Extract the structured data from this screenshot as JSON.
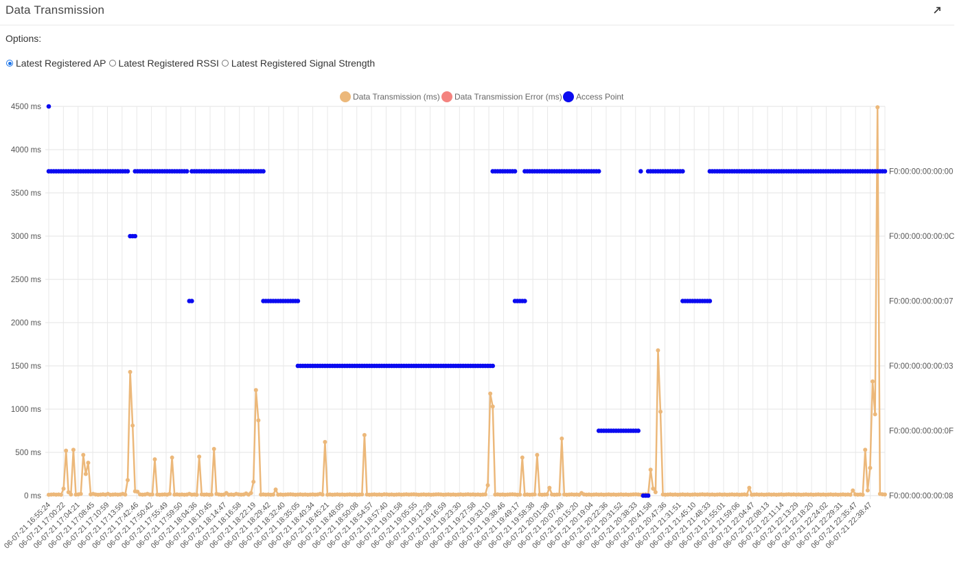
{
  "panel": {
    "title": "Data Transmission"
  },
  "options": {
    "label": "Options:",
    "radios": [
      {
        "label": "Latest Registered AP",
        "checked": true
      },
      {
        "label": "Latest Registered RSSI",
        "checked": false
      },
      {
        "label": "Latest Registered Signal Strength",
        "checked": false
      }
    ]
  },
  "colors": {
    "transmission": "#ecb87a",
    "error": "#f4837f",
    "access_point": "#0b0bf0",
    "radio_accent": "#1a73e8"
  },
  "chart_data": {
    "type": "line",
    "legend": {
      "placement": "top-center",
      "entries": [
        "Data Transmission (ms)",
        "Data Transmission Error (ms)",
        "Access Point"
      ]
    },
    "y_axis": {
      "ticks": [
        "0 ms",
        "500 ms",
        "1000 ms",
        "1500 ms",
        "2000 ms",
        "2500 ms",
        "3000 ms",
        "3500 ms",
        "4000 ms",
        "4500 ms"
      ],
      "ylim": [
        0,
        4500
      ]
    },
    "y2_axis": {
      "ticks": [
        "F0:00:00:00:00:08",
        "F0:00:00:00:00:0F",
        "F0:00:00:00:00:03",
        "F0:00:00:00:00:07",
        "F0:00:00:00:00:0C",
        "F0:00:00:00:00:00"
      ],
      "levels": [
        0,
        750,
        1500,
        2250,
        3000,
        3750
      ]
    },
    "x_axis": {
      "tick_labels": [
        "06-07-21 16:55:24",
        "06-07-21 17:00:22",
        "06-07-21 17:04:21",
        "06-07-21 17:08:45",
        "06-07-21 17:10:59",
        "06-07-21 17:13:59",
        "06-07-21 17:42:46",
        "06-07-21 17:50:42",
        "06-07-21 17:55:49",
        "06-07-21 17:59:50",
        "06-07-21 18:04:36",
        "06-07-21 18:10:45",
        "06-07-21 18:14:47",
        "06-07-21 18:16:58",
        "06-07-21 18:22:19",
        "06-07-21 18:29:42",
        "06-07-21 18:32:40",
        "06-07-21 18:35:05",
        "06-07-21 18:40:34",
        "06-07-21 18:45:21",
        "06-07-21 18:48:05",
        "06-07-21 18:50:08",
        "06-07-21 18:54:57",
        "06-07-21 18:57:40",
        "06-07-21 19:01:58",
        "06-07-21 19:05:55",
        "06-07-21 19:12:28",
        "06-07-21 19:16:59",
        "06-07-21 19:23:30",
        "06-07-21 19:27:58",
        "06-07-21 19:33:10",
        "06-07-21 19:38:46",
        "06-07-21 19:49:17",
        "06-07-21 19:58:38",
        "06-07-21 20:01:38",
        "06-07-21 20:07:48",
        "06-07-21 20:15:20",
        "06-07-21 20:19:04",
        "06-07-21 20:22:36",
        "06-07-21 20:31:52",
        "06-07-21 20:38:33",
        "06-07-21 20:41:58",
        "06-07-21 20:47:36",
        "06-07-21 21:31:51",
        "06-07-21 21:45:10",
        "06-07-21 21:48:33",
        "06-07-21 21:55:01",
        "06-07-21 21:59:06",
        "06-07-21 22:04:47",
        "06-07-21 22:08:13",
        "06-07-21 22:11:14",
        "06-07-21 22:13:29",
        "06-07-21 22:18:20",
        "06-07-21 22:24:02",
        "06-07-21 22:29:31",
        "06-07-21 22:35:47",
        "06-07-21 22:38:47"
      ]
    },
    "grid": true,
    "n_points": 340,
    "transmission_baseline_ms": 10,
    "transmission_spikes": [
      [
        6,
        80
      ],
      [
        7,
        520
      ],
      [
        8,
        40
      ],
      [
        10,
        530
      ],
      [
        13,
        20
      ],
      [
        14,
        470
      ],
      [
        15,
        250
      ],
      [
        16,
        380
      ],
      [
        18,
        20
      ],
      [
        22,
        15
      ],
      [
        24,
        20
      ],
      [
        30,
        20
      ],
      [
        32,
        180
      ],
      [
        33,
        1430
      ],
      [
        34,
        810
      ],
      [
        35,
        50
      ],
      [
        36,
        45
      ],
      [
        40,
        20
      ],
      [
        43,
        420
      ],
      [
        49,
        20
      ],
      [
        50,
        440
      ],
      [
        57,
        20
      ],
      [
        61,
        450
      ],
      [
        67,
        540
      ],
      [
        68,
        20
      ],
      [
        72,
        30
      ],
      [
        76,
        20
      ],
      [
        80,
        25
      ],
      [
        82,
        30
      ],
      [
        83,
        160
      ],
      [
        84,
        1220
      ],
      [
        85,
        870
      ],
      [
        92,
        70
      ],
      [
        98,
        15
      ],
      [
        110,
        20
      ],
      [
        112,
        620
      ],
      [
        128,
        700
      ],
      [
        136,
        15
      ],
      [
        145,
        15
      ],
      [
        148,
        15
      ],
      [
        158,
        15
      ],
      [
        170,
        15
      ],
      [
        178,
        120
      ],
      [
        179,
        1180
      ],
      [
        180,
        1030
      ],
      [
        188,
        15
      ],
      [
        192,
        440
      ],
      [
        198,
        470
      ],
      [
        203,
        90
      ],
      [
        208,
        660
      ],
      [
        216,
        30
      ],
      [
        238,
        15
      ],
      [
        244,
        300
      ],
      [
        245,
        80
      ],
      [
        246,
        40
      ],
      [
        247,
        1680
      ],
      [
        248,
        970
      ],
      [
        265,
        15
      ],
      [
        284,
        90
      ],
      [
        300,
        15
      ],
      [
        326,
        60
      ],
      [
        331,
        530
      ],
      [
        332,
        60
      ],
      [
        333,
        320
      ],
      [
        334,
        1320
      ],
      [
        335,
        940
      ],
      [
        336,
        4490
      ],
      [
        337,
        20
      ],
      [
        338,
        15
      ]
    ],
    "access_point_series": [
      {
        "level": 4500,
        "from": 0,
        "to": 0
      },
      {
        "level": 3750,
        "from": 0,
        "to": 32
      },
      {
        "level": 3000,
        "from": 33,
        "to": 35
      },
      {
        "level": 3750,
        "from": 35,
        "to": 56
      },
      {
        "level": 2250,
        "from": 57,
        "to": 58
      },
      {
        "level": 3750,
        "from": 58,
        "to": 87
      },
      {
        "level": 2250,
        "from": 87,
        "to": 101
      },
      {
        "level": 1500,
        "from": 101,
        "to": 180
      },
      {
        "level": 3750,
        "from": 180,
        "to": 189
      },
      {
        "level": 2250,
        "from": 189,
        "to": 193
      },
      {
        "level": 3750,
        "from": 193,
        "to": 223
      },
      {
        "level": 750,
        "from": 223,
        "to": 239
      },
      {
        "level": 3750,
        "from": 240,
        "to": 240
      },
      {
        "level": 3750,
        "from": 243,
        "to": 257
      },
      {
        "level": 0,
        "from": 241,
        "to": 243
      },
      {
        "level": 2250,
        "from": 257,
        "to": 268
      },
      {
        "level": 3750,
        "from": 268,
        "to": 339
      }
    ]
  }
}
